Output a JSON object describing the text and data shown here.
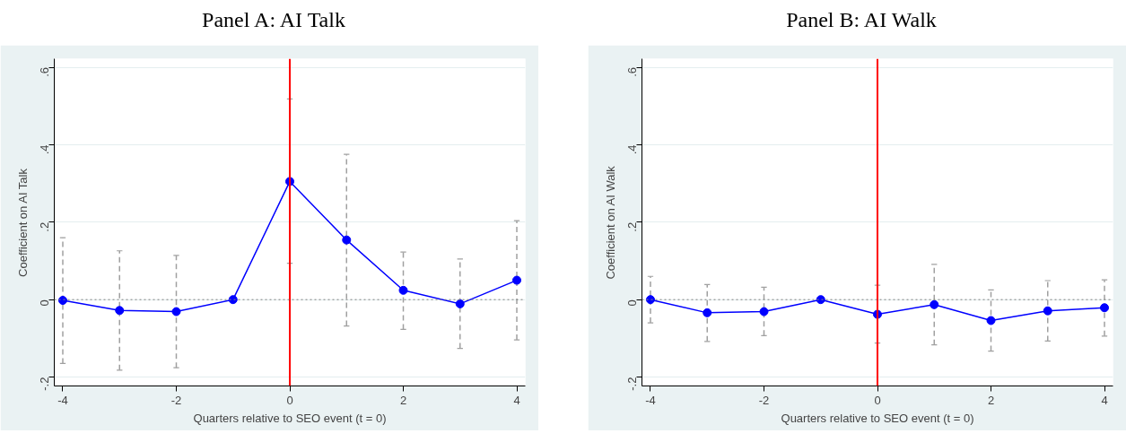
{
  "chart_data": [
    {
      "type": "line",
      "title": "Panel A: AI Talk",
      "xlabel": "Quarters relative to SEO event (t = 0)",
      "ylabel": "Coefficient on AI Talk",
      "x": [
        -4,
        -3,
        -2,
        -1,
        0,
        1,
        2,
        3,
        4
      ],
      "series": [
        {
          "color": "#0000ff",
          "values": [
            -0.002,
            -0.028,
            -0.031,
            0,
            0.305,
            0.154,
            0.024,
            -0.011,
            0.05
          ],
          "errors": [
            [
              -0.165,
              0.16
            ],
            [
              -0.182,
              0.126
            ],
            [
              -0.176,
              0.114
            ],
            null,
            [
              0.094,
              0.518
            ],
            [
              -0.068,
              0.375
            ],
            [
              -0.077,
              0.123
            ],
            [
              -0.126,
              0.105
            ],
            [
              -0.104,
              0.204
            ]
          ]
        }
      ],
      "xlim": [
        -4.15,
        4.15
      ],
      "xticks": [
        -4,
        -2,
        0,
        2,
        4
      ],
      "ylim": [
        -0.223,
        0.622
      ],
      "yticks": [
        {
          "value": -0.2,
          "label": "-.2"
        },
        0,
        {
          "value": 0.2,
          "label": ".2"
        },
        {
          "value": 0.4,
          "label": ".4"
        },
        {
          "value": 0.6,
          "label": ".6"
        }
      ],
      "ref_lines": [
        {
          "axis": "x",
          "value": 0,
          "color": "#ff0000",
          "line_style": "solid"
        },
        {
          "axis": "y",
          "value": 0,
          "color": "#808080",
          "line_style": "dotted"
        }
      ],
      "grid": "y",
      "marker": "circle",
      "line_style": "solid"
    },
    {
      "type": "line",
      "title": "Panel B: AI Walk",
      "xlabel": "Quarters relative to SEO event (t = 0)",
      "ylabel": "Coefficient on AI Walk",
      "x": [
        -4,
        -3,
        -2,
        -1,
        0,
        1,
        2,
        3,
        4
      ],
      "series": [
        {
          "color": "#0000ff",
          "values": [
            0,
            -0.034,
            -0.031,
            0,
            -0.038,
            -0.013,
            -0.054,
            -0.029,
            -0.021
          ],
          "errors": [
            [
              -0.06,
              0.06
            ],
            [
              -0.108,
              0.039
            ],
            [
              -0.093,
              0.032
            ],
            null,
            [
              -0.112,
              0.037
            ],
            [
              -0.117,
              0.091
            ],
            [
              -0.133,
              0.025
            ],
            [
              -0.107,
              0.049
            ],
            [
              -0.094,
              0.051
            ]
          ]
        }
      ],
      "xlim": [
        -4.15,
        4.15
      ],
      "xticks": [
        -4,
        -2,
        0,
        2,
        4
      ],
      "ylim": [
        -0.223,
        0.622
      ],
      "yticks": [
        {
          "value": -0.2,
          "label": "-.2"
        },
        0,
        {
          "value": 0.2,
          "label": ".2"
        },
        {
          "value": 0.4,
          "label": ".4"
        },
        {
          "value": 0.6,
          "label": ".6"
        }
      ],
      "ref_lines": [
        {
          "axis": "x",
          "value": 0,
          "color": "#ff0000",
          "line_style": "solid"
        },
        {
          "axis": "y",
          "value": 0,
          "color": "#808080",
          "line_style": "dotted"
        }
      ],
      "grid": "y",
      "marker": "circle",
      "line_style": "solid"
    }
  ]
}
